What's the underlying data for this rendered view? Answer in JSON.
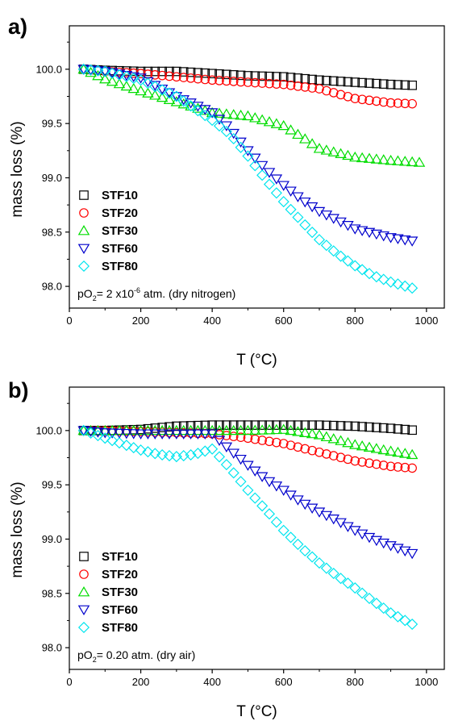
{
  "chart_data": [
    {
      "type": "scatter",
      "panel_label": "a)",
      "xlabel": "T (°C)",
      "ylabel": "mass loss (%)",
      "xlim": [
        0,
        1050
      ],
      "ylim": [
        97.8,
        100.4
      ],
      "xticks": [
        "0",
        "200",
        "400",
        "600",
        "800",
        "1000"
      ],
      "yticks": [
        "98.0",
        "98.5",
        "99.0",
        "99.5",
        "100.0"
      ],
      "annotation": {
        "prefix": "pO",
        "sub": "2",
        "text": "= 2 x10",
        "sup": "-6",
        "suffix": " atm. (dry nitrogen)"
      },
      "legend_position": "bottom-left",
      "series": [
        {
          "name": "STF10",
          "marker": "square",
          "color": "#000000",
          "x": [
            40,
            100,
            200,
            300,
            400,
            500,
            600,
            700,
            800,
            900,
            975
          ],
          "y": [
            100.0,
            99.99,
            99.98,
            99.98,
            99.96,
            99.94,
            99.93,
            99.9,
            99.88,
            99.86,
            99.85
          ]
        },
        {
          "name": "STF20",
          "marker": "circle",
          "color": "#ff0000",
          "x": [
            40,
            100,
            200,
            300,
            400,
            500,
            600,
            700,
            800,
            900,
            975
          ],
          "y": [
            100.0,
            99.98,
            99.96,
            99.93,
            99.9,
            99.88,
            99.86,
            99.82,
            99.73,
            99.69,
            99.68
          ]
        },
        {
          "name": "STF30",
          "marker": "triangle-up",
          "color": "#00dd00",
          "x": [
            40,
            100,
            200,
            300,
            400,
            500,
            600,
            650,
            700,
            800,
            900,
            990
          ],
          "y": [
            100.0,
            99.91,
            99.8,
            99.7,
            99.6,
            99.57,
            99.48,
            99.38,
            99.27,
            99.19,
            99.16,
            99.14
          ]
        },
        {
          "name": "STF60",
          "marker": "triangle-down",
          "color": "#0000cc",
          "x": [
            40,
            100,
            200,
            300,
            400,
            450,
            500,
            550,
            600,
            650,
            700,
            800,
            900,
            975
          ],
          "y": [
            100.0,
            99.98,
            99.92,
            99.75,
            99.6,
            99.45,
            99.25,
            99.08,
            98.93,
            98.8,
            98.69,
            98.53,
            98.45,
            98.41
          ]
        },
        {
          "name": "STF80",
          "marker": "diamond",
          "color": "#00e5ee",
          "x": [
            40,
            100,
            200,
            300,
            400,
            450,
            500,
            550,
            600,
            650,
            700,
            750,
            800,
            850,
            900,
            975
          ],
          "y": [
            100.0,
            99.98,
            99.9,
            99.75,
            99.53,
            99.4,
            99.2,
            98.98,
            98.78,
            98.6,
            98.43,
            98.3,
            98.19,
            98.1,
            98.04,
            97.97
          ]
        }
      ]
    },
    {
      "type": "scatter",
      "panel_label": "b)",
      "xlabel": "T (°C)",
      "ylabel": "mass loss (%)",
      "xlim": [
        0,
        1050
      ],
      "ylim": [
        97.8,
        100.4
      ],
      "xticks": [
        "0",
        "200",
        "400",
        "600",
        "800",
        "1000"
      ],
      "yticks": [
        "98.0",
        "98.5",
        "99.0",
        "99.5",
        "100.0"
      ],
      "annotation": {
        "prefix": "pO",
        "sub": "2",
        "text": "= 0.20 atm. (dry air)",
        "sup": "",
        "suffix": ""
      },
      "legend_position": "bottom-left",
      "series": [
        {
          "name": "STF10",
          "marker": "square",
          "color": "#000000",
          "x": [
            40,
            100,
            200,
            300,
            400,
            500,
            600,
            700,
            800,
            900,
            975
          ],
          "y": [
            100.0,
            100.0,
            100.01,
            100.04,
            100.05,
            100.05,
            100.05,
            100.05,
            100.04,
            100.02,
            100.0
          ]
        },
        {
          "name": "STF20",
          "marker": "circle",
          "color": "#ff0000",
          "x": [
            40,
            100,
            200,
            300,
            400,
            500,
            600,
            700,
            800,
            900,
            975
          ],
          "y": [
            100.0,
            100.0,
            99.99,
            99.98,
            99.97,
            99.93,
            99.88,
            99.8,
            99.72,
            99.67,
            99.65
          ]
        },
        {
          "name": "STF30",
          "marker": "triangle-up",
          "color": "#00dd00",
          "x": [
            40,
            100,
            200,
            300,
            400,
            500,
            600,
            700,
            800,
            900,
            975
          ],
          "y": [
            100.0,
            100.0,
            100.0,
            100.0,
            100.0,
            100.0,
            100.01,
            99.96,
            99.87,
            99.81,
            99.77
          ]
        },
        {
          "name": "STF60",
          "marker": "triangle-down",
          "color": "#0000cc",
          "x": [
            40,
            100,
            200,
            300,
            400,
            450,
            500,
            550,
            600,
            650,
            700,
            750,
            800,
            850,
            900,
            975
          ],
          "y": [
            100.0,
            99.98,
            99.97,
            99.97,
            99.97,
            99.82,
            99.68,
            99.55,
            99.45,
            99.34,
            99.25,
            99.17,
            99.08,
            99.0,
            98.94,
            98.85
          ]
        },
        {
          "name": "STF80",
          "marker": "diamond",
          "color": "#00e5ee",
          "x": [
            40,
            100,
            200,
            250,
            300,
            350,
            400,
            450,
            500,
            550,
            600,
            650,
            700,
            750,
            800,
            850,
            900,
            975
          ],
          "y": [
            100.0,
            99.93,
            99.82,
            99.78,
            99.76,
            99.78,
            99.83,
            99.65,
            99.45,
            99.27,
            99.08,
            98.92,
            98.78,
            98.66,
            98.55,
            98.43,
            98.32,
            98.19
          ]
        }
      ]
    }
  ]
}
